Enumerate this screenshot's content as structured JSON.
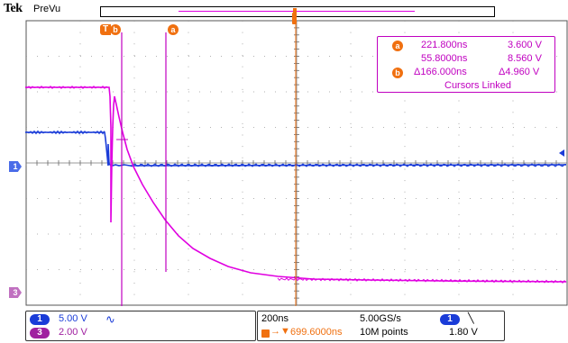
{
  "header": {
    "brand": "Tek",
    "mode": "PreVu"
  },
  "markers": {
    "trigger_label": "T",
    "cursor_a_label": "a",
    "cursor_b_label": "b",
    "ch1_label": "1",
    "ch3_label": "3"
  },
  "cursor_readout": {
    "a_time": "221.800ns",
    "a_volt": "3.600 V",
    "b_time": "55.8000ns",
    "b_volt": "8.560 V",
    "delta_time": "Δ166.000ns",
    "delta_volt": "Δ4.960 V",
    "status": "Cursors Linked"
  },
  "channels": [
    {
      "number": "1",
      "scale": "5.00 V",
      "coupling_symbol": "∿",
      "color": "#1a3cd8"
    },
    {
      "number": "3",
      "scale": "2.00 V",
      "color": "#a020a0"
    }
  ],
  "timebase": {
    "horizontal_scale": "200ns",
    "sample_rate": "5.00GS/s",
    "trigger_position": "699.6000ns",
    "record_length": "10M points"
  },
  "trigger": {
    "source": "1",
    "slope_symbol": "╲",
    "level": "1.80 V"
  },
  "colors": {
    "ch1": "#1a3cd8",
    "ch3": "#e000e0",
    "cursor": "#c000c0",
    "marker_orange": "#f07010",
    "grid": "#888888"
  }
}
